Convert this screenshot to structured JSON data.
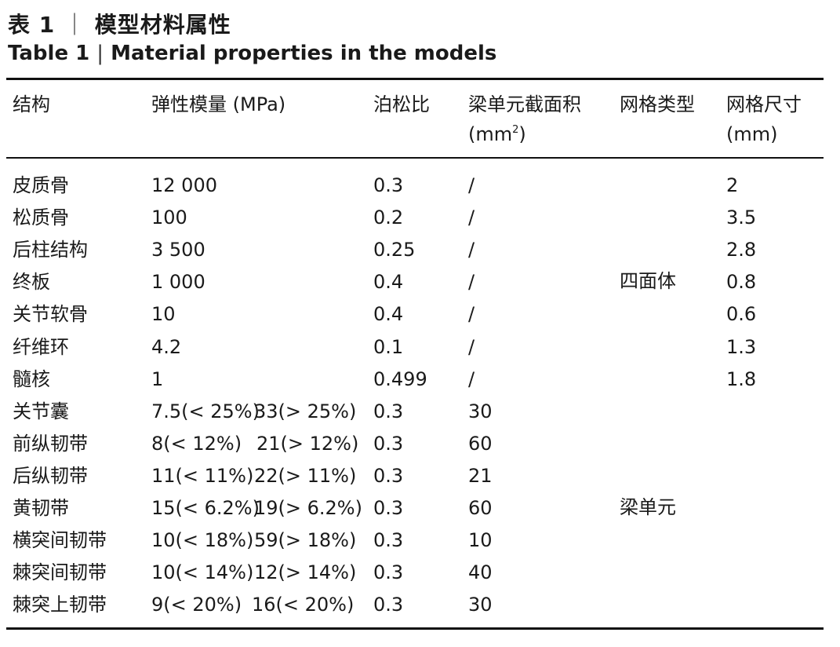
{
  "title": {
    "cn_prefix": "表 1",
    "cn_sep": "｜",
    "cn_text": "模型材料属性",
    "en_prefix": "Table 1",
    "en_sep": "|",
    "en_text": "Material properties in the models"
  },
  "headers": {
    "structure": "结构",
    "modulus": "弹性模量 (MPa)",
    "poisson": "泊松比",
    "beam_area_line1": "梁单元截面积",
    "beam_area_unit_prefix": "(mm",
    "beam_area_unit_sup": "2",
    "beam_area_unit_suffix": ")",
    "mesh_type": "网格类型",
    "mesh_size_line1": "网格尺寸",
    "mesh_size_line2": "(mm)"
  },
  "rows": [
    {
      "structure": "皮质骨",
      "modulus_a": "12 000",
      "modulus_b": "",
      "poisson": "0.3",
      "area": "/",
      "mesh": "2"
    },
    {
      "structure": "松质骨",
      "modulus_a": "100",
      "modulus_b": "",
      "poisson": "0.2",
      "area": "/",
      "mesh": "3.5"
    },
    {
      "structure": "后柱结构",
      "modulus_a": "3 500",
      "modulus_b": "",
      "poisson": "0.25",
      "area": "/",
      "mesh": "2.8"
    },
    {
      "structure": "终板",
      "modulus_a": "1 000",
      "modulus_b": "",
      "poisson": "0.4",
      "area": "/",
      "mesh": "0.8"
    },
    {
      "structure": "关节软骨",
      "modulus_a": "10",
      "modulus_b": "",
      "poisson": "0.4",
      "area": "/",
      "mesh": "0.6"
    },
    {
      "structure": "纤维环",
      "modulus_a": "4.2",
      "modulus_b": "",
      "poisson": "0.1",
      "area": "/",
      "mesh": "1.3"
    },
    {
      "structure": "髓核",
      "modulus_a": "1",
      "modulus_b": "",
      "poisson": "0.499",
      "area": "/",
      "mesh": "1.8"
    },
    {
      "structure": "关节囊",
      "modulus_a": "7.5(< 25%)",
      "modulus_b": "33(> 25%)",
      "poisson": "0.3",
      "area": "30",
      "mesh": ""
    },
    {
      "structure": "前纵韧带",
      "modulus_a": "8(< 12%)",
      "modulus_b": "21(> 12%)",
      "poisson": "0.3",
      "area": "60",
      "mesh": ""
    },
    {
      "structure": "后纵韧带",
      "modulus_a": "11(< 11%)",
      "modulus_b": "22(> 11%)",
      "poisson": "0.3",
      "area": "21",
      "mesh": ""
    },
    {
      "structure": "黄韧带",
      "modulus_a": "15(< 6.2%)",
      "modulus_b": "19(> 6.2%)",
      "poisson": "0.3",
      "area": "60",
      "mesh": ""
    },
    {
      "structure": "横突间韧带",
      "modulus_a": "10(< 18%)",
      "modulus_b": "59(> 18%)",
      "poisson": "0.3",
      "area": "10",
      "mesh": ""
    },
    {
      "structure": "棘突间韧带",
      "modulus_a": "10(< 14%)",
      "modulus_b": "12(> 14%)",
      "poisson": "0.3",
      "area": "40",
      "mesh": ""
    },
    {
      "structure": "棘突上韧带",
      "modulus_a": "9(< 20%)",
      "modulus_b": "16(< 20%)",
      "poisson": "0.3",
      "area": "30",
      "mesh": ""
    }
  ],
  "mesh_type_groups": {
    "solid": "四面体",
    "beam": "梁单元"
  }
}
